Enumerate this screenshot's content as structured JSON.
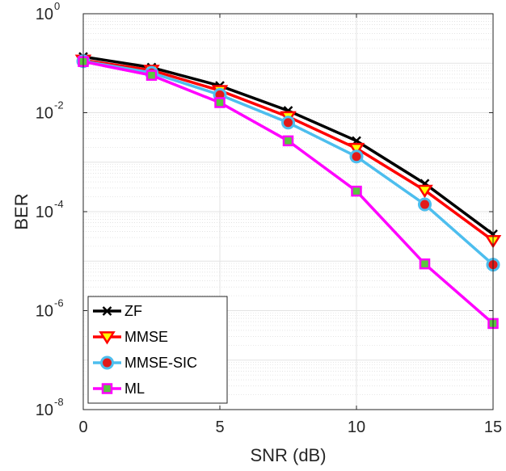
{
  "chart_data": {
    "type": "line",
    "xlabel": "SNR (dB)",
    "ylabel": "BER",
    "xlim": [
      0,
      15
    ],
    "ylim": [
      1e-08,
      1
    ],
    "yscale": "log",
    "grid": true,
    "minor_grid": true,
    "x_ticks": [
      "0",
      "5",
      "10",
      "15"
    ],
    "y_ticks": [
      {
        "base": "10",
        "exp": "0"
      },
      {
        "base": "10",
        "exp": "-2"
      },
      {
        "base": "10",
        "exp": "-4"
      },
      {
        "base": "10",
        "exp": "-6"
      },
      {
        "base": "10",
        "exp": "-8"
      }
    ],
    "legend_position": "bottom-left",
    "x": [
      0,
      2.5,
      5,
      7.5,
      10,
      12.5,
      15
    ],
    "series": [
      {
        "name": "ZF",
        "color": "#000000",
        "marker": "x-cross",
        "values": [
          0.135,
          0.082,
          0.035,
          0.011,
          0.0027,
          0.00037,
          3.5e-05
        ]
      },
      {
        "name": "MMSE",
        "color": "#ff0000",
        "marker": "triangle-down",
        "values": [
          0.115,
          0.072,
          0.028,
          0.0083,
          0.0019,
          0.00027,
          2.6e-05
        ]
      },
      {
        "name": "MMSE-SIC",
        "color": "#4dbeee",
        "marker": "circle",
        "values": [
          0.11,
          0.064,
          0.023,
          0.0063,
          0.0013,
          0.00014,
          8.5e-06
        ]
      },
      {
        "name": "ML",
        "color": "#ff00ff",
        "marker": "square",
        "values": [
          0.108,
          0.057,
          0.016,
          0.0027,
          0.00026,
          8.8e-06,
          5.5e-07
        ]
      }
    ]
  }
}
